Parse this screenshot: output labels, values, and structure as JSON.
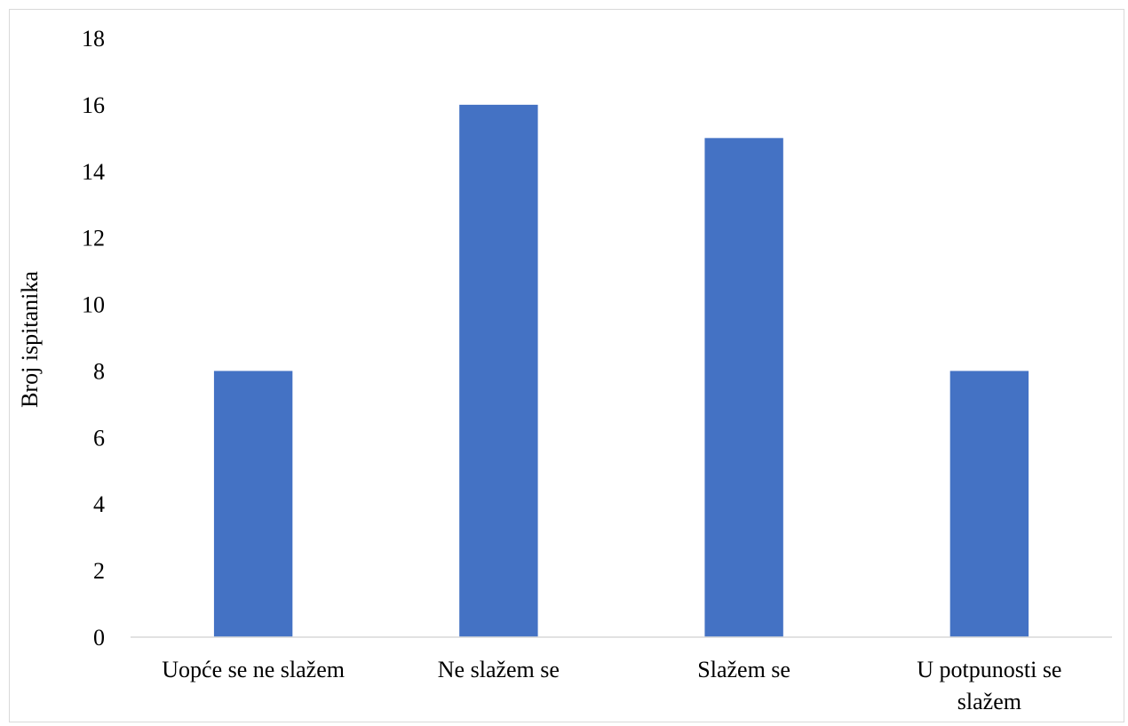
{
  "chart_data": {
    "type": "bar",
    "title": "",
    "xlabel": "",
    "ylabel": "Broj ispitanika",
    "categories": [
      "Uopće se ne slažem",
      "Ne slažem se",
      "Slažem se",
      "U potpunosti se slažem"
    ],
    "category_lines": [
      [
        "Uopće se ne slažem"
      ],
      [
        "Ne slažem se"
      ],
      [
        "Slažem se"
      ],
      [
        "U potpunosti se",
        "slažem"
      ]
    ],
    "values": [
      8,
      16,
      15,
      8
    ],
    "ylim": [
      0,
      18
    ],
    "yticks": [
      "0",
      "2",
      "4",
      "6",
      "8",
      "10",
      "12",
      "14",
      "16",
      "18"
    ],
    "grid": false,
    "legend": "none",
    "bar_color": "#4472c4"
  }
}
